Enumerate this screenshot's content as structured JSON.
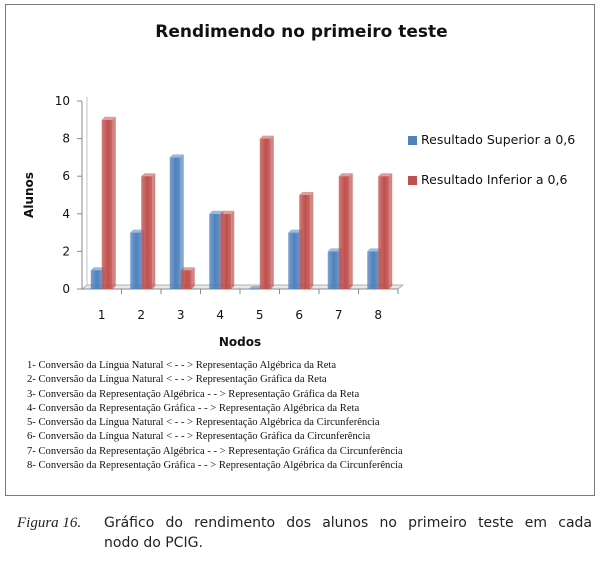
{
  "chart_data": {
    "type": "bar",
    "title": "Rendimendo no primeiro teste",
    "xlabel": "Nodos",
    "ylabel": "Alunos",
    "categories": [
      "1",
      "2",
      "3",
      "4",
      "5",
      "6",
      "7",
      "8"
    ],
    "ylim": [
      0,
      10
    ],
    "yticks": [
      "0",
      "2",
      "4",
      "6",
      "8",
      "10"
    ],
    "grid": false,
    "legend_position": "right",
    "series": [
      {
        "name": "Resultado Superior a 0,6",
        "color": "#4f81bd",
        "values": [
          1,
          3,
          7,
          4,
          0,
          3,
          2,
          2
        ]
      },
      {
        "name": "Resultado Inferior a 0,6",
        "color": "#c0504d",
        "values": [
          9,
          6,
          1,
          4,
          8,
          5,
          6,
          6
        ]
      }
    ]
  },
  "notes": [
    "1- Conversão da Língua Natural < - - > Representação Algébrica da Reta",
    "2- Conversão da Língua Natural < - - > Representação Gráfica da Reta",
    "3- Conversão da Representação Algébrica  - - > Representação Gráfica da Reta",
    "4- Conversão da Representação Gráfica  - - > Representação Algébrica da Reta",
    "5- Conversão da Língua Natural < - - > Representação Algébrica da Circunferência",
    "6- Conversão da Língua Natural < - - > Representação Gráfica da Circunferência",
    "7- Conversão da Representação Algébrica  - - > Representação Gráfica da Circunferência",
    "8- Conversão da Representação Gráfica  - - > Representação Algébrica da Circunferência"
  ],
  "caption": {
    "label": "Figura 16.",
    "line1": "Gráfico do rendimento dos alunos no primeiro teste em cada",
    "line2": "nodo do PCIG."
  }
}
